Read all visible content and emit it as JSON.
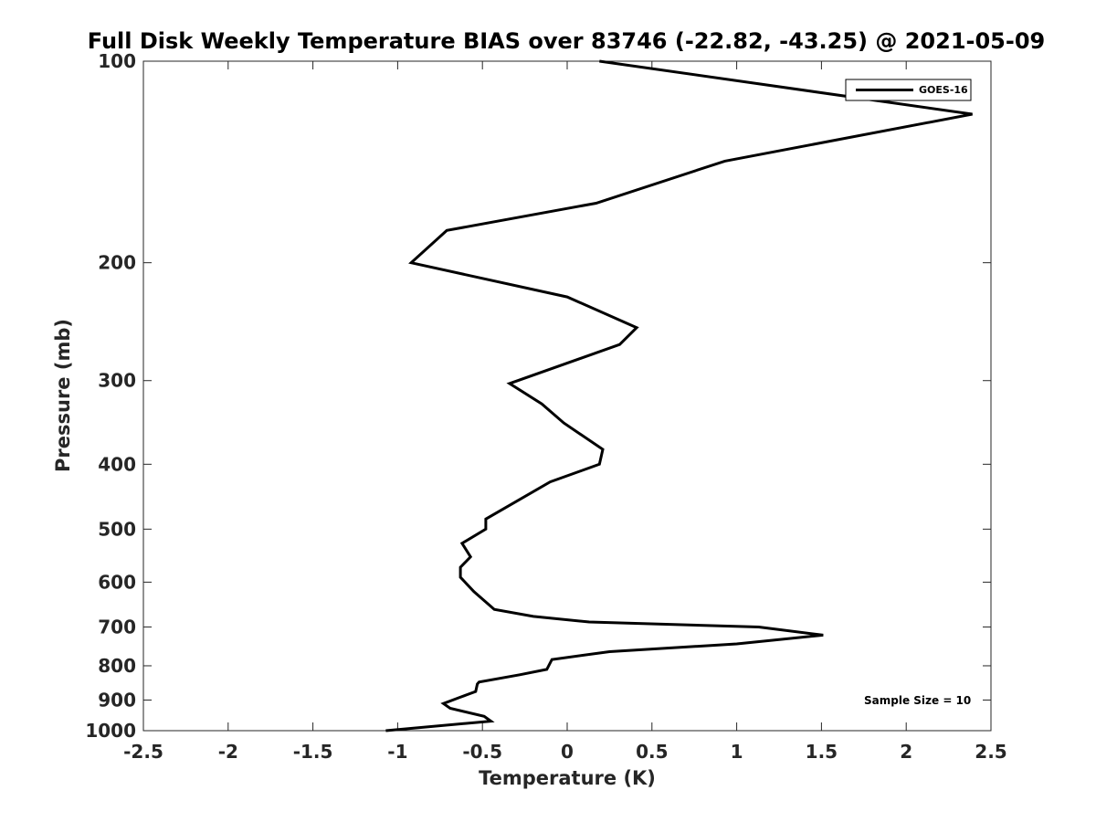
{
  "chart_data": {
    "type": "line",
    "title": "Full Disk Weekly Temperature BIAS over 83746 (-22.82, -43.25) @ 2021-05-09",
    "xlabel": "Temperature (K)",
    "ylabel": "Pressure (mb)",
    "xlim": [
      -2.5,
      2.5
    ],
    "ylim": [
      100,
      1000
    ],
    "y_scale": "log",
    "y_reversed": true,
    "xticks": [
      -2.5,
      -2,
      -1.5,
      -1,
      -0.5,
      0,
      0.5,
      1,
      1.5,
      2,
      2.5
    ],
    "xtick_labels": [
      "-2.5",
      "-2",
      "-1.5",
      "-1",
      "-0.5",
      "0",
      "0.5",
      "1",
      "1.5",
      "2",
      "2.5"
    ],
    "yticks": [
      100,
      200,
      300,
      400,
      500,
      600,
      700,
      800,
      900,
      1000
    ],
    "ytick_labels": [
      "100",
      "200",
      "300",
      "400",
      "500",
      "600",
      "700",
      "800",
      "900",
      "1000"
    ],
    "grid": false,
    "legend_position": "top-right",
    "annotation": "Sample Size = 10",
    "line_color": "#000000",
    "series": [
      {
        "name": "GOES-16",
        "points": [
          [
            0.19,
            100
          ],
          [
            2.39,
            120
          ],
          [
            0.93,
            141
          ],
          [
            0.17,
            163
          ],
          [
            -0.71,
            179
          ],
          [
            -0.92,
            200
          ],
          [
            0.0,
            225
          ],
          [
            0.41,
            250
          ],
          [
            0.31,
            265
          ],
          [
            -0.34,
            303
          ],
          [
            -0.15,
            325
          ],
          [
            -0.02,
            347
          ],
          [
            0.21,
            380
          ],
          [
            0.19,
            400
          ],
          [
            -0.1,
            425
          ],
          [
            -0.48,
            483
          ],
          [
            -0.48,
            500
          ],
          [
            -0.62,
            525
          ],
          [
            -0.57,
            550
          ],
          [
            -0.63,
            570
          ],
          [
            -0.63,
            590
          ],
          [
            -0.55,
            620
          ],
          [
            -0.43,
            659
          ],
          [
            -0.2,
            675
          ],
          [
            0.13,
            688
          ],
          [
            1.13,
            700
          ],
          [
            1.51,
            720
          ],
          [
            1.0,
            742
          ],
          [
            0.25,
            762
          ],
          [
            -0.09,
            783
          ],
          [
            -0.12,
            810
          ],
          [
            -0.28,
            825
          ],
          [
            -0.52,
            846
          ],
          [
            -0.53,
            852
          ],
          [
            -0.54,
            874
          ],
          [
            -0.64,
            893
          ],
          [
            -0.73,
            911
          ],
          [
            -0.69,
            926
          ],
          [
            -0.49,
            952
          ],
          [
            -0.45,
            968
          ],
          [
            -1.07,
            1000
          ]
        ]
      }
    ]
  }
}
